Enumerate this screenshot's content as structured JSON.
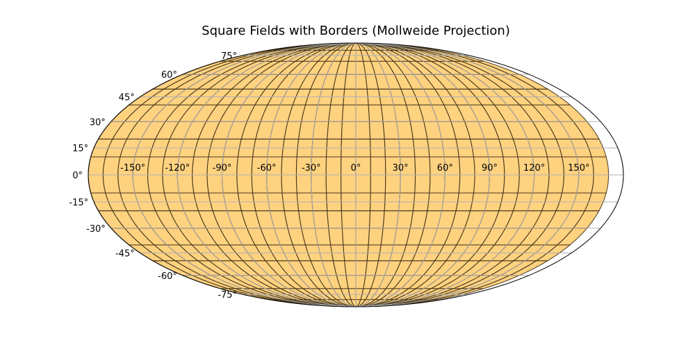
{
  "chart_data": {
    "type": "map",
    "projection": "Mollweide",
    "title": "Square Fields with Borders (Mollweide Projection)",
    "field_size_deg": 10,
    "field_fill": "#ffd280",
    "field_border": "#3a2a10",
    "graticule_color": "#b0b0b0",
    "frame_color": "#000000",
    "grid": true,
    "longitude_ticks": [
      -150,
      -120,
      -90,
      -60,
      -30,
      0,
      30,
      60,
      90,
      120,
      150
    ],
    "longitude_tick_labels": [
      "-150°",
      "-120°",
      "-90°",
      "-60°",
      "-30°",
      "0°",
      "30°",
      "60°",
      "90°",
      "120°",
      "150°"
    ],
    "latitude_ticks": [
      -75,
      -60,
      -45,
      -30,
      -15,
      0,
      15,
      30,
      45,
      60,
      75
    ],
    "latitude_tick_labels": [
      "-75°",
      "-60°",
      "-45°",
      "-30°",
      "-15°",
      "0°",
      "15°",
      "30°",
      "45°",
      "60°",
      "75°"
    ]
  }
}
